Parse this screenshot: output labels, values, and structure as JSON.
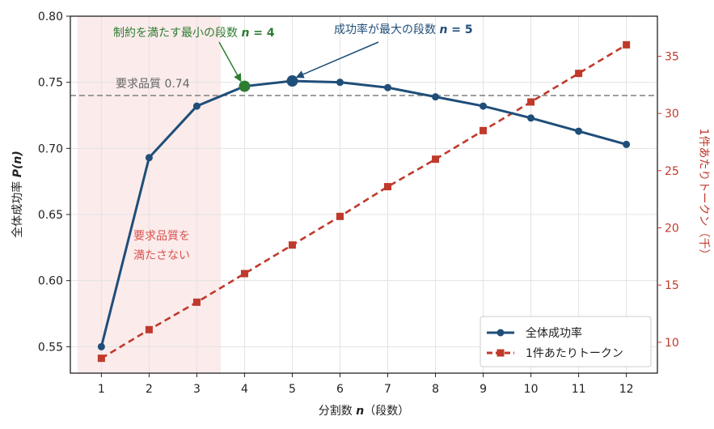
{
  "chart_data": {
    "type": "line",
    "x": [
      1,
      2,
      3,
      4,
      5,
      6,
      7,
      8,
      9,
      10,
      11,
      12
    ],
    "series": [
      {
        "name": "全体成功率",
        "axis": "left",
        "color": "#1f4e79",
        "style": "solid",
        "marker": "circle",
        "values": [
          0.55,
          0.693,
          0.732,
          0.747,
          0.751,
          0.75,
          0.746,
          0.739,
          0.732,
          0.723,
          0.713,
          0.703
        ]
      },
      {
        "name": "1件あたりトークン",
        "axis": "right",
        "color": "#c0392b",
        "style": "dashed",
        "marker": "square",
        "values": [
          8.6,
          11.1,
          13.5,
          16.0,
          18.5,
          21.0,
          23.6,
          26.0,
          28.5,
          31.0,
          33.5,
          36.0
        ]
      }
    ],
    "xlabel_parts": {
      "pre": "分割数 ",
      "var": "n",
      "post": "（段数）"
    },
    "ylabel_parts": {
      "pre": "全体成功率 ",
      "var": "P",
      "post": "(n)"
    },
    "y2label": "1件あたりトークン（千）",
    "xticks": [
      "1",
      "2",
      "3",
      "4",
      "5",
      "6",
      "7",
      "8",
      "9",
      "10",
      "11",
      "12"
    ],
    "yticks": [
      "0.55",
      "0.60",
      "0.65",
      "0.70",
      "0.75",
      "0.80"
    ],
    "y2ticks": [
      "10",
      "15",
      "20",
      "25",
      "30",
      "35"
    ],
    "xlim": [
      0.35,
      12.65
    ],
    "ylim": [
      0.53,
      0.8
    ],
    "y2lim": [
      7.3,
      38.5
    ],
    "grid": true,
    "legend_position": "lower-right",
    "threshold": {
      "value": 0.74,
      "label": "要求品質 0.74",
      "color": "#7f7f7f"
    },
    "shaded_region": {
      "x_from": 0.5,
      "x_to": 3.5,
      "color": "#f9e4e4",
      "label_lines": [
        "要求品質を",
        "満たさない"
      ],
      "label_color": "#d9534f"
    },
    "annotations": [
      {
        "id": "min-stages",
        "x": 4,
        "y": 0.747,
        "text": "制約を満たす最小の段数 ",
        "var": "n",
        "eq": " = 4",
        "color": "#2e7d32"
      },
      {
        "id": "max-success",
        "x": 5,
        "y": 0.751,
        "text": "成功率が最大の段数 ",
        "var": "n",
        "eq": " = 5",
        "color": "#1f4e79"
      }
    ]
  }
}
